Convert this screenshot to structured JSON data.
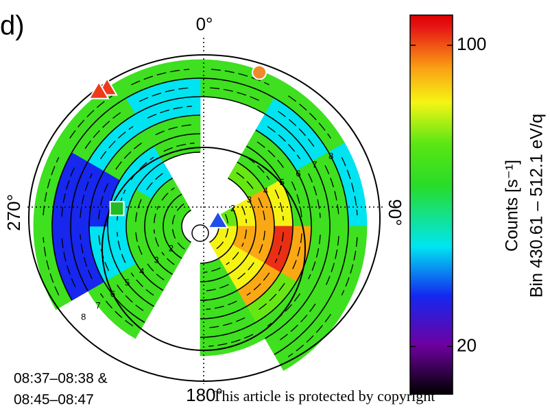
{
  "chart_data": {
    "type": "polar_heatmap",
    "panel_label": "d)",
    "angle_labels": [
      {
        "value": 0,
        "label": "0°"
      },
      {
        "value": 90,
        "label": "90°"
      },
      {
        "value": 180,
        "label": "180°"
      },
      {
        "value": 270,
        "label": "270°"
      }
    ],
    "time_label": [
      "08:37–08:38 &",
      "08:45–08:47"
    ],
    "angles": [
      0,
      30,
      60,
      90,
      120,
      150,
      180,
      210,
      240,
      270,
      300,
      330,
      360
    ],
    "radii": [
      1,
      2,
      3,
      4,
      5,
      6,
      7,
      8,
      9
    ],
    "counts": [
      [
        null,
        null,
        60,
        74,
        74,
        null,
        null,
        52,
        52,
        52,
        52,
        null
      ],
      [
        null,
        null,
        74,
        87,
        74,
        52,
        null,
        52,
        52,
        52,
        52,
        null
      ],
      [
        null,
        60,
        87,
        87,
        74,
        52,
        null,
        52,
        52,
        52,
        34,
        null
      ],
      [
        null,
        52,
        74,
        106,
        87,
        52,
        null,
        52,
        34,
        34,
        34,
        52
      ],
      [
        null,
        52,
        52,
        87,
        60,
        52,
        null,
        52,
        34,
        26,
        52,
        52
      ],
      [
        null,
        34,
        52,
        52,
        52,
        52,
        null,
        52,
        26,
        26,
        34,
        34
      ],
      [
        52,
        34,
        52,
        52,
        52,
        null,
        null,
        null,
        26,
        26,
        52,
        34
      ],
      [
        52,
        52,
        34,
        52,
        52,
        null,
        null,
        null,
        52,
        52,
        52,
        52
      ]
    ],
    "radius_labels": [
      2,
      3,
      4,
      5,
      6,
      7,
      8
    ],
    "markers": [
      {
        "shape": "triangle",
        "color": "#ee3a1a",
        "angle": 326,
        "radius": 9.0
      },
      {
        "shape": "triangle",
        "color": "#ee3a1a",
        "angle": 323,
        "radius": 9.1
      },
      {
        "shape": "circle",
        "color": "#f08a2a",
        "angle": 21,
        "radius": 8.9
      },
      {
        "shape": "square",
        "color": "#22bb22",
        "angle": 282,
        "radius": 4.6
      },
      {
        "shape": "triangle",
        "color": "#1f4ee8",
        "angle": 73,
        "radius": 1.0
      }
    ],
    "colorbar": {
      "title": "Counts [s⁻¹]",
      "subtitle": "Bin 430.61 – 512.1 eV/q",
      "log": true,
      "lim": [
        15.5,
        117.5
      ],
      "ticks": [
        20,
        100
      ]
    },
    "footer": "This article is protected by copyright"
  }
}
